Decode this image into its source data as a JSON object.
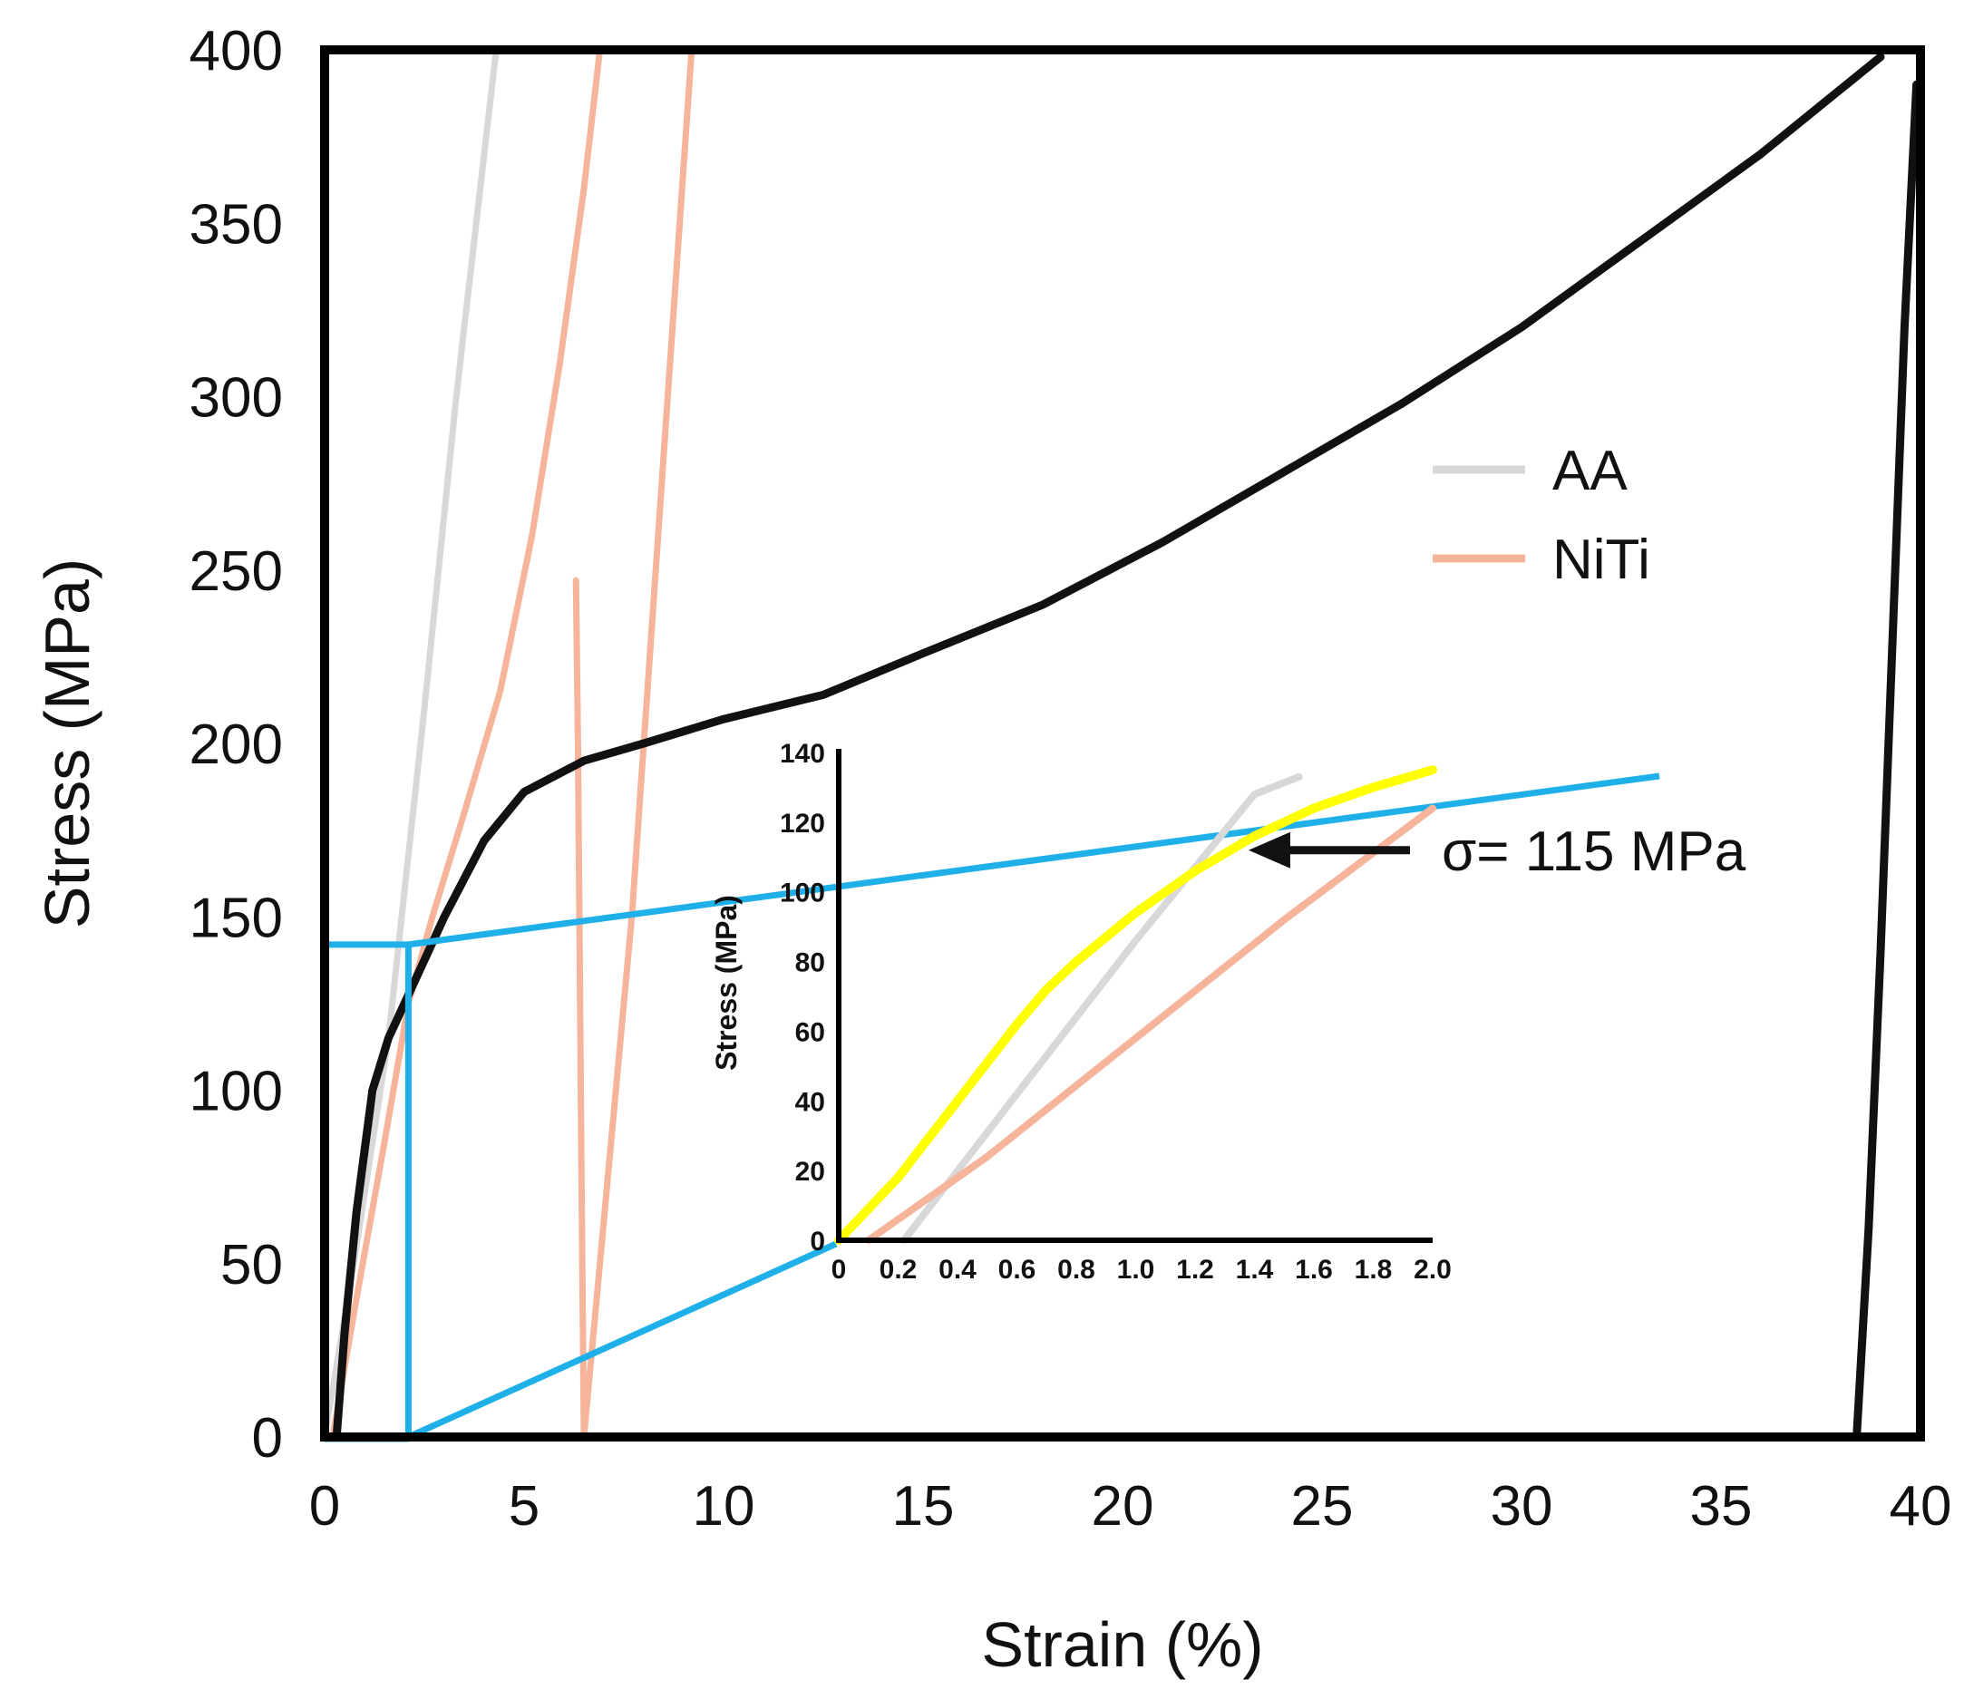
{
  "chart_data": [
    {
      "id": "main",
      "type": "line",
      "xlabel": "Strain (%)",
      "ylabel": "Stress (MPa)",
      "xlim": [
        0,
        40
      ],
      "ylim": [
        0,
        400
      ],
      "xticks": [
        0,
        5,
        10,
        15,
        20,
        25,
        30,
        35,
        40
      ],
      "yticks": [
        0,
        50,
        100,
        150,
        200,
        250,
        300,
        350,
        400
      ],
      "grid": false,
      "legend": {
        "placement": "right-middle",
        "entries": [
          {
            "label": "AA",
            "color": "#d8d8d8"
          },
          {
            "label": "NiTi",
            "color": "#f6b49a"
          }
        ]
      },
      "series": [
        {
          "name": "AA",
          "color": "#d8d8d8",
          "points": [
            [
              0,
              0
            ],
            [
              0.8,
              55
            ],
            [
              1.6,
              115
            ],
            [
              2.5,
              210
            ],
            [
              3.3,
              300
            ],
            [
              4.3,
              400
            ]
          ]
        },
        {
          "name": "NiTi",
          "color": "#f6b49a",
          "points": [
            [
              0.2,
              0
            ],
            [
              0.8,
              40
            ],
            [
              1.5,
              85
            ],
            [
              2.1,
              125
            ],
            [
              2.7,
              150
            ],
            [
              3.5,
              180
            ],
            [
              4.4,
              215
            ],
            [
              5.2,
              260
            ],
            [
              5.9,
              310
            ],
            [
              6.5,
              360
            ],
            [
              6.9,
              400
            ]
          ]
        },
        {
          "name": "NiTi",
          "color": "#f6b49a",
          "points": [
            [
              6.3,
              247
            ],
            [
              6.35,
              200
            ],
            [
              6.4,
              130
            ],
            [
              6.45,
              60
            ],
            [
              6.5,
              0
            ]
          ]
        },
        {
          "name": "NiTi",
          "color": "#f6b49a",
          "points": [
            [
              6.5,
              0
            ],
            [
              6.9,
              50
            ],
            [
              7.3,
              100
            ],
            [
              7.7,
              150
            ],
            [
              8.0,
              200
            ],
            [
              8.3,
              250
            ],
            [
              8.6,
              300
            ],
            [
              8.9,
              350
            ],
            [
              9.2,
              400
            ]
          ]
        },
        {
          "name": "composite",
          "color": "#111111",
          "points": [
            [
              0.3,
              0
            ],
            [
              0.5,
              30
            ],
            [
              0.8,
              65
            ],
            [
              1.2,
              100
            ],
            [
              1.6,
              115
            ],
            [
              2.2,
              130
            ],
            [
              3.0,
              150
            ],
            [
              4.0,
              172
            ],
            [
              5.0,
              186
            ],
            [
              6.5,
              195
            ],
            [
              8.0,
              200
            ],
            [
              10.0,
              207
            ],
            [
              12.5,
              214
            ],
            [
              15.0,
              226
            ],
            [
              18.0,
              240
            ],
            [
              21.0,
              258
            ],
            [
              24.0,
              278
            ],
            [
              27.0,
              298
            ],
            [
              30.0,
              320
            ],
            [
              33.0,
              345
            ],
            [
              36.0,
              370
            ],
            [
              39.0,
              398
            ]
          ]
        },
        {
          "name": "composite-unload",
          "color": "#111111",
          "points": [
            [
              38.4,
              0
            ],
            [
              38.7,
              60
            ],
            [
              39.0,
              140
            ],
            [
              39.3,
              230
            ],
            [
              39.6,
              320
            ],
            [
              39.9,
              390
            ]
          ]
        }
      ]
    },
    {
      "id": "inset",
      "type": "line",
      "ylabel": "Stress (MPa)",
      "xlim": [
        0,
        2.0
      ],
      "ylim": [
        0,
        140
      ],
      "xticks": [
        "0",
        "0.2",
        "0.4",
        "0.6",
        "0.8",
        "1.0",
        "1.2",
        "1.4",
        "1.6",
        "1.8",
        "2.0"
      ],
      "yticks": [
        "0",
        "20",
        "40",
        "60",
        "80",
        "100",
        "120",
        "140"
      ],
      "grid": false,
      "series": [
        {
          "name": "AA",
          "color": "#d8d8d8",
          "points": [
            [
              0.22,
              0
            ],
            [
              0.6,
              42
            ],
            [
              1.0,
              86
            ],
            [
              1.4,
              128
            ],
            [
              1.55,
              133
            ]
          ]
        },
        {
          "name": "NiTi",
          "color": "#f6b49a",
          "points": [
            [
              0.1,
              0
            ],
            [
              0.5,
              24
            ],
            [
              1.0,
              58
            ],
            [
              1.5,
              92
            ],
            [
              2.0,
              124
            ]
          ]
        },
        {
          "name": "composite",
          "color": "#ffff00",
          "points": [
            [
              0,
              0
            ],
            [
              0.2,
              18
            ],
            [
              0.4,
              40
            ],
            [
              0.6,
              62
            ],
            [
              0.7,
              72
            ],
            [
              0.8,
              80
            ],
            [
              1.0,
              94
            ],
            [
              1.2,
              106
            ],
            [
              1.4,
              116
            ],
            [
              1.6,
              124
            ],
            [
              1.8,
              130
            ],
            [
              2.0,
              135
            ]
          ]
        }
      ],
      "annotation": {
        "text": "σ= 115 MPa",
        "arrow_target": [
          1.38,
          113
        ]
      }
    }
  ],
  "zoom_guides": {
    "color": "#1fb0ea",
    "region": {
      "x_range": [
        0,
        2.1
      ],
      "y_range": [
        0,
        142
      ]
    }
  }
}
